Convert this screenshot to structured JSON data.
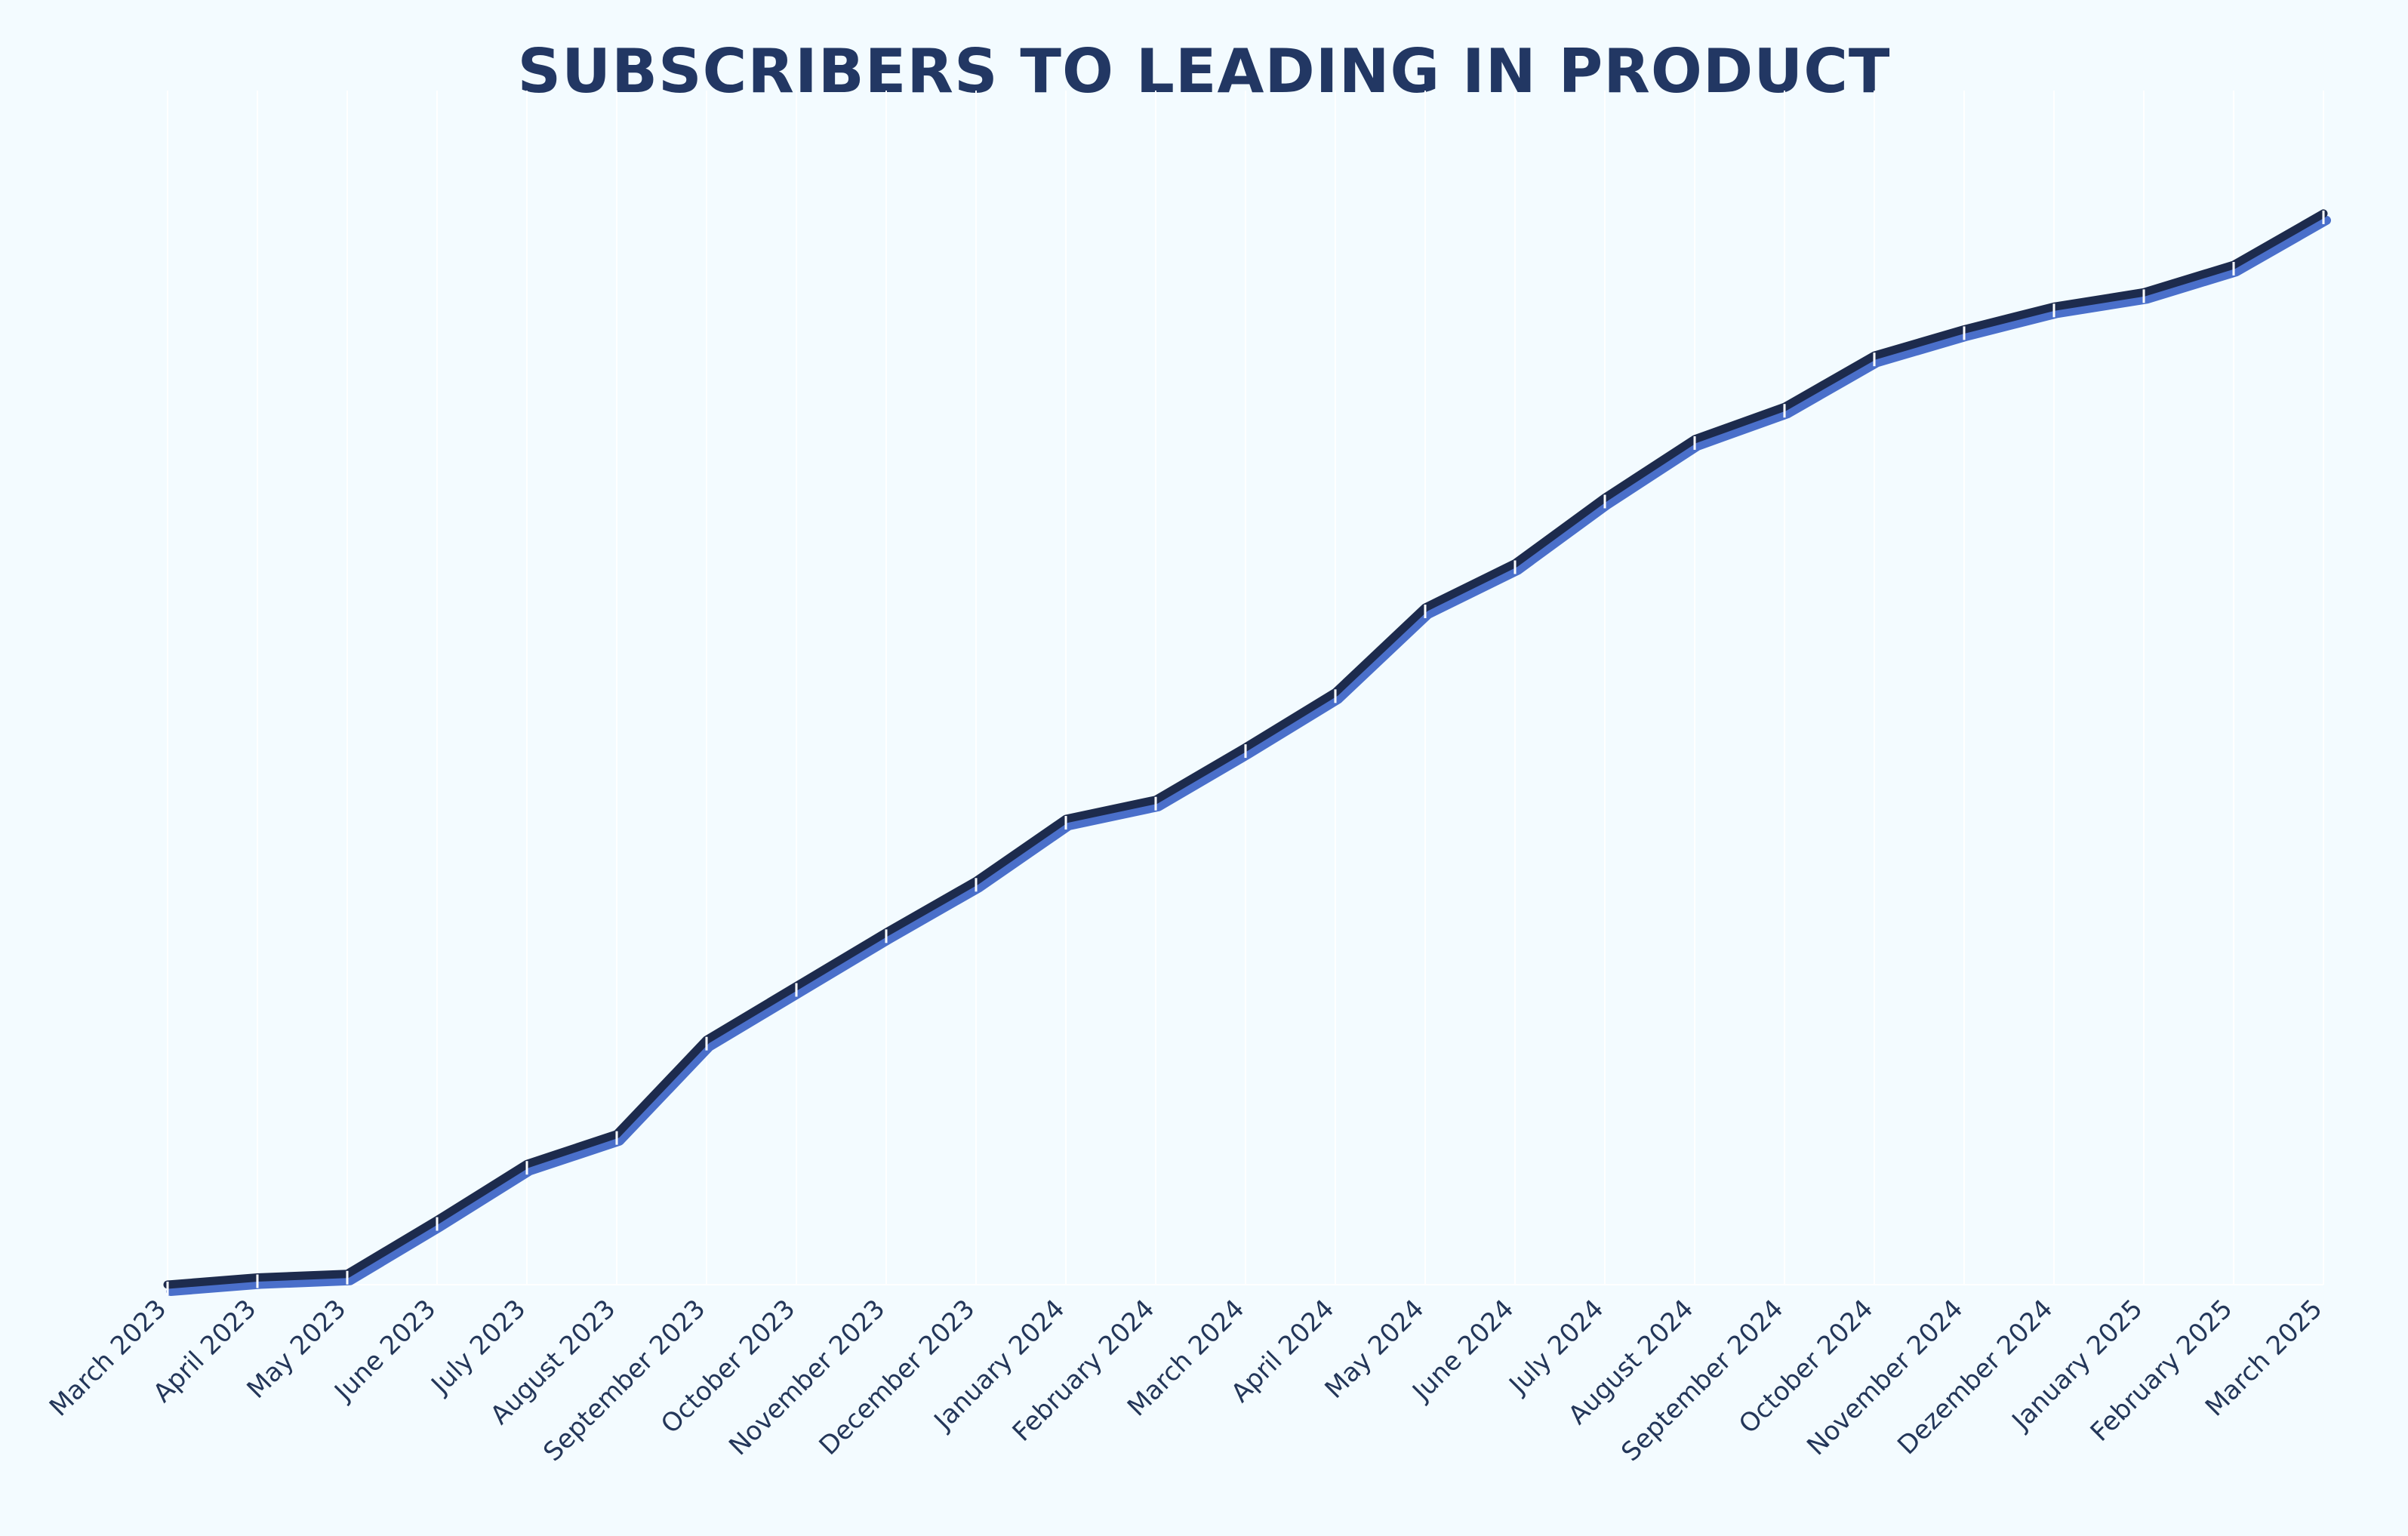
{
  "chart_data": {
    "type": "line",
    "title": "SUBSCRIBERS TO LEADING IN PRODUCT",
    "xlabel": "",
    "ylabel": "",
    "categories": [
      "March 2023",
      "April 2023",
      "May 2023",
      "June 2023",
      "July 2023",
      "August 2023",
      "September 2023",
      "October 2023",
      "November 2023",
      "December 2023",
      "January 2024",
      "February 2024",
      "March 2024",
      "April 2024",
      "May 2024",
      "June 2024",
      "July 2024",
      "August 2024",
      "September 2024",
      "October 2024",
      "November 2024",
      "Dezember 2024",
      "January 2025",
      "February 2025",
      "March 2025"
    ],
    "series": [
      {
        "values": [
          0,
          0.6,
          0.9,
          5.4,
          10.1,
          12.6,
          20.5,
          25.0,
          29.5,
          33.8,
          39.0,
          40.6,
          45.0,
          49.6,
          56.7,
          60.4,
          65.9,
          70.8,
          73.5,
          77.8,
          80.0,
          81.9,
          83.1,
          85.4,
          89.7
        ]
      }
    ],
    "ylim": [
      0,
      100
    ],
    "y_axis_visible": false,
    "grid": "vertical",
    "legend": "none",
    "colors": {
      "line": "#1d2b4d",
      "line_shadow": "#4a6fca",
      "grid": "#ffffff",
      "title": "#223763",
      "labels": "#233659",
      "background": "#f3fbff"
    }
  }
}
